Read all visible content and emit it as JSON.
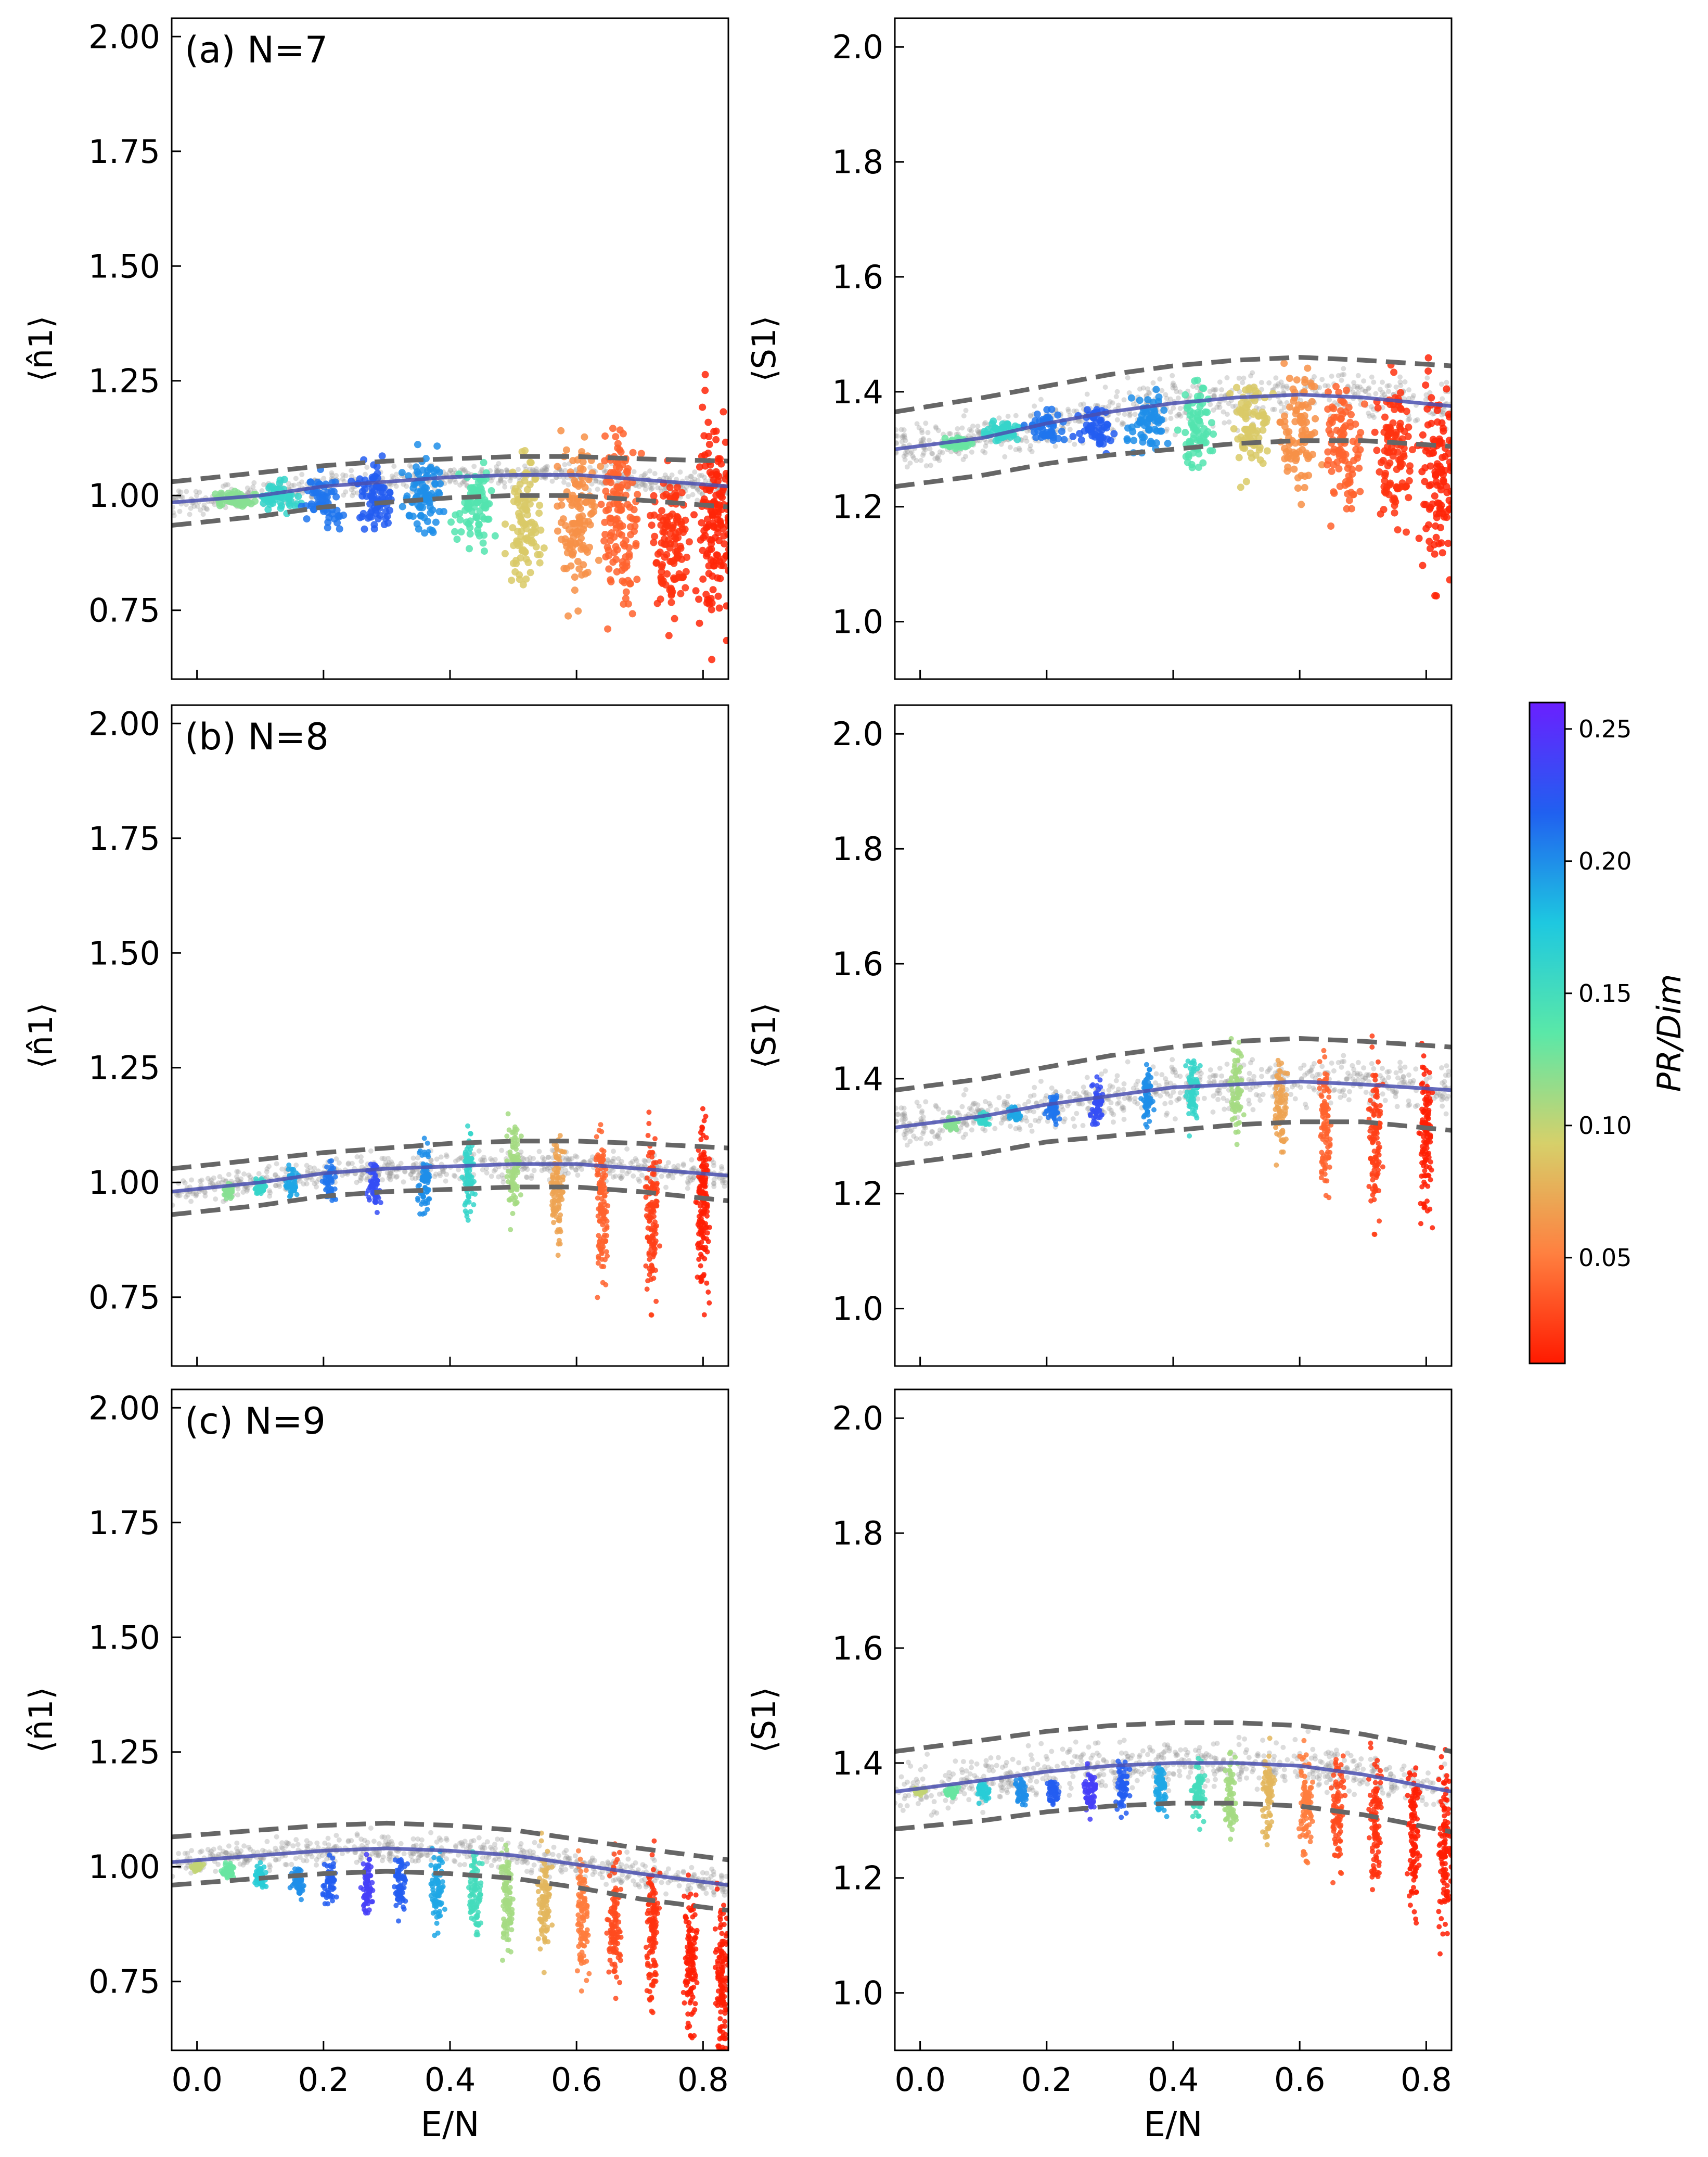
{
  "figure": {
    "colorbar": {
      "label": "PR/Dim",
      "min": 0.01,
      "max": 0.26,
      "ticks": [
        "0.05",
        "0.10",
        "0.15",
        "0.20",
        "0.25"
      ],
      "colors": [
        "#ff1a00",
        "#ff8040",
        "#d6d06a",
        "#5ae8a8",
        "#1ec8e0",
        "#2060f0",
        "#6a20ff"
      ]
    }
  },
  "chart_data": [
    {
      "type": "scatter",
      "panel": "a",
      "label": "(a) N=7",
      "xlabel": "",
      "ylabel": "⟨n̂1⟩",
      "xlim": [
        -0.04,
        0.84
      ],
      "ylim": [
        0.6,
        2.04
      ],
      "x_ticks": [
        "0.0",
        "0.2",
        "0.4",
        "0.6",
        "0.8"
      ],
      "y_ticks": [
        "0.75",
        "1.00",
        "1.25",
        "1.50",
        "1.75",
        "2.00"
      ],
      "mean_curve": {
        "x": [
          -0.04,
          0.1,
          0.2,
          0.3,
          0.4,
          0.5,
          0.6,
          0.7,
          0.84
        ],
        "y": [
          0.985,
          1.0,
          1.02,
          1.03,
          1.04,
          1.045,
          1.045,
          1.035,
          1.02
        ]
      },
      "band_upper": {
        "x": [
          -0.04,
          0.1,
          0.2,
          0.3,
          0.4,
          0.5,
          0.6,
          0.7,
          0.84
        ],
        "y": [
          1.03,
          1.05,
          1.065,
          1.075,
          1.08,
          1.085,
          1.085,
          1.08,
          1.075
        ]
      },
      "band_lower": {
        "x": [
          -0.04,
          0.1,
          0.2,
          0.3,
          0.4,
          0.5,
          0.6,
          0.7,
          0.84
        ],
        "y": [
          0.935,
          0.955,
          0.975,
          0.985,
          0.995,
          1.0,
          1.0,
          0.99,
          0.975
        ]
      },
      "clusters": [
        {
          "x": 0.06,
          "y": 0.99,
          "pr": 0.12,
          "spread_y": 0.03
        },
        {
          "x": 0.13,
          "y": 1.0,
          "pr": 0.16,
          "spread_y": 0.06
        },
        {
          "x": 0.2,
          "y": 0.99,
          "pr": 0.21,
          "spread_y": 0.1
        },
        {
          "x": 0.28,
          "y": 1.0,
          "pr": 0.22,
          "spread_y": 0.14
        },
        {
          "x": 0.36,
          "y": 1.0,
          "pr": 0.2,
          "spread_y": 0.16
        },
        {
          "x": 0.44,
          "y": 0.98,
          "pr": 0.14,
          "spread_y": 0.17
        },
        {
          "x": 0.52,
          "y": 0.95,
          "pr": 0.09,
          "spread_y": 0.24
        },
        {
          "x": 0.6,
          "y": 0.95,
          "pr": 0.06,
          "spread_y": 0.32
        },
        {
          "x": 0.67,
          "y": 0.95,
          "pr": 0.04,
          "spread_y": 0.36
        },
        {
          "x": 0.75,
          "y": 0.9,
          "pr": 0.02,
          "spread_y": 0.3
        },
        {
          "x": 0.82,
          "y": 0.95,
          "pr": 0.015,
          "spread_y": 0.45
        }
      ]
    },
    {
      "type": "scatter",
      "panel": "a-right",
      "label": "",
      "xlabel": "",
      "ylabel": "⟨S1⟩",
      "xlim": [
        -0.04,
        0.84
      ],
      "ylim": [
        0.9,
        2.05
      ],
      "x_ticks": [
        "0.0",
        "0.2",
        "0.4",
        "0.6",
        "0.8"
      ],
      "y_ticks": [
        "1.0",
        "1.2",
        "1.4",
        "1.6",
        "1.8",
        "2.0"
      ],
      "mean_curve": {
        "x": [
          -0.04,
          0.1,
          0.2,
          0.3,
          0.4,
          0.5,
          0.6,
          0.7,
          0.84
        ],
        "y": [
          1.3,
          1.32,
          1.345,
          1.365,
          1.38,
          1.39,
          1.395,
          1.39,
          1.375
        ]
      },
      "band_upper": {
        "x": [
          -0.04,
          0.1,
          0.2,
          0.3,
          0.4,
          0.5,
          0.6,
          0.7,
          0.84
        ],
        "y": [
          1.365,
          1.39,
          1.41,
          1.43,
          1.445,
          1.455,
          1.46,
          1.455,
          1.445
        ]
      },
      "band_lower": {
        "x": [
          -0.04,
          0.1,
          0.2,
          0.3,
          0.4,
          0.5,
          0.6,
          0.7,
          0.84
        ],
        "y": [
          1.235,
          1.255,
          1.275,
          1.29,
          1.3,
          1.31,
          1.315,
          1.315,
          1.305
        ]
      },
      "clusters": [
        {
          "x": 0.06,
          "y": 1.31,
          "pr": 0.13,
          "spread_y": 0.02
        },
        {
          "x": 0.13,
          "y": 1.33,
          "pr": 0.16,
          "spread_y": 0.03
        },
        {
          "x": 0.2,
          "y": 1.34,
          "pr": 0.21,
          "spread_y": 0.05
        },
        {
          "x": 0.28,
          "y": 1.34,
          "pr": 0.22,
          "spread_y": 0.08
        },
        {
          "x": 0.36,
          "y": 1.35,
          "pr": 0.2,
          "spread_y": 0.1
        },
        {
          "x": 0.44,
          "y": 1.34,
          "pr": 0.14,
          "spread_y": 0.13
        },
        {
          "x": 0.52,
          "y": 1.34,
          "pr": 0.09,
          "spread_y": 0.16
        },
        {
          "x": 0.6,
          "y": 1.33,
          "pr": 0.06,
          "spread_y": 0.2
        },
        {
          "x": 0.67,
          "y": 1.3,
          "pr": 0.04,
          "spread_y": 0.2
        },
        {
          "x": 0.75,
          "y": 1.3,
          "pr": 0.02,
          "spread_y": 0.25
        },
        {
          "x": 0.82,
          "y": 1.25,
          "pr": 0.015,
          "spread_y": 0.3
        }
      ]
    },
    {
      "type": "scatter",
      "panel": "b",
      "label": "(b) N=8",
      "xlabel": "",
      "ylabel": "⟨n̂1⟩",
      "xlim": [
        -0.04,
        0.84
      ],
      "ylim": [
        0.6,
        2.04
      ],
      "x_ticks": [
        "0.0",
        "0.2",
        "0.4",
        "0.6",
        "0.8"
      ],
      "y_ticks": [
        "0.75",
        "1.00",
        "1.25",
        "1.50",
        "1.75",
        "2.00"
      ],
      "mean_curve": {
        "x": [
          -0.04,
          0.1,
          0.2,
          0.3,
          0.4,
          0.5,
          0.6,
          0.7,
          0.84
        ],
        "y": [
          0.98,
          1.0,
          1.02,
          1.03,
          1.035,
          1.04,
          1.04,
          1.03,
          1.015
        ]
      },
      "band_upper": {
        "x": [
          -0.04,
          0.1,
          0.2,
          0.3,
          0.4,
          0.5,
          0.6,
          0.7,
          0.84
        ],
        "y": [
          1.03,
          1.05,
          1.065,
          1.075,
          1.085,
          1.09,
          1.09,
          1.085,
          1.075
        ]
      },
      "band_lower": {
        "x": [
          -0.04,
          0.1,
          0.2,
          0.3,
          0.4,
          0.5,
          0.6,
          0.7,
          0.84
        ],
        "y": [
          0.93,
          0.95,
          0.97,
          0.98,
          0.985,
          0.99,
          0.99,
          0.98,
          0.96
        ]
      },
      "clusters": [
        {
          "x": 0.05,
          "y": 0.98,
          "pr": 0.12,
          "spread_y": 0.03
        },
        {
          "x": 0.1,
          "y": 0.99,
          "pr": 0.16,
          "spread_y": 0.04
        },
        {
          "x": 0.15,
          "y": 1.0,
          "pr": 0.19,
          "spread_y": 0.06
        },
        {
          "x": 0.21,
          "y": 1.0,
          "pr": 0.21,
          "spread_y": 0.08
        },
        {
          "x": 0.28,
          "y": 1.0,
          "pr": 0.23,
          "spread_y": 0.11
        },
        {
          "x": 0.36,
          "y": 1.01,
          "pr": 0.2,
          "spread_y": 0.14
        },
        {
          "x": 0.43,
          "y": 1.02,
          "pr": 0.16,
          "spread_y": 0.17
        },
        {
          "x": 0.5,
          "y": 1.03,
          "pr": 0.11,
          "spread_y": 0.2
        },
        {
          "x": 0.57,
          "y": 0.98,
          "pr": 0.07,
          "spread_y": 0.22
        },
        {
          "x": 0.64,
          "y": 0.95,
          "pr": 0.04,
          "spread_y": 0.3
        },
        {
          "x": 0.72,
          "y": 0.93,
          "pr": 0.025,
          "spread_y": 0.32
        },
        {
          "x": 0.8,
          "y": 0.95,
          "pr": 0.012,
          "spread_y": 0.4
        }
      ]
    },
    {
      "type": "scatter",
      "panel": "b-right",
      "label": "",
      "xlabel": "",
      "ylabel": "⟨S1⟩",
      "xlim": [
        -0.04,
        0.84
      ],
      "ylim": [
        0.9,
        2.05
      ],
      "x_ticks": [
        "0.0",
        "0.2",
        "0.4",
        "0.6",
        "0.8"
      ],
      "y_ticks": [
        "1.0",
        "1.2",
        "1.4",
        "1.6",
        "1.8",
        "2.0"
      ],
      "mean_curve": {
        "x": [
          -0.04,
          0.1,
          0.2,
          0.3,
          0.4,
          0.5,
          0.6,
          0.7,
          0.84
        ],
        "y": [
          1.315,
          1.335,
          1.355,
          1.37,
          1.385,
          1.39,
          1.395,
          1.39,
          1.38
        ]
      },
      "band_upper": {
        "x": [
          -0.04,
          0.1,
          0.2,
          0.3,
          0.4,
          0.5,
          0.6,
          0.7,
          0.84
        ],
        "y": [
          1.38,
          1.4,
          1.42,
          1.44,
          1.455,
          1.465,
          1.47,
          1.465,
          1.455
        ]
      },
      "band_lower": {
        "x": [
          -0.04,
          0.1,
          0.2,
          0.3,
          0.4,
          0.5,
          0.6,
          0.7,
          0.84
        ],
        "y": [
          1.25,
          1.27,
          1.29,
          1.3,
          1.31,
          1.32,
          1.325,
          1.325,
          1.31
        ]
      },
      "clusters": [
        {
          "x": 0.05,
          "y": 1.32,
          "pr": 0.12,
          "spread_y": 0.02
        },
        {
          "x": 0.1,
          "y": 1.33,
          "pr": 0.16,
          "spread_y": 0.02
        },
        {
          "x": 0.15,
          "y": 1.34,
          "pr": 0.19,
          "spread_y": 0.03
        },
        {
          "x": 0.21,
          "y": 1.35,
          "pr": 0.21,
          "spread_y": 0.05
        },
        {
          "x": 0.28,
          "y": 1.36,
          "pr": 0.23,
          "spread_y": 0.07
        },
        {
          "x": 0.36,
          "y": 1.37,
          "pr": 0.2,
          "spread_y": 0.09
        },
        {
          "x": 0.43,
          "y": 1.38,
          "pr": 0.16,
          "spread_y": 0.12
        },
        {
          "x": 0.5,
          "y": 1.38,
          "pr": 0.11,
          "spread_y": 0.15
        },
        {
          "x": 0.57,
          "y": 1.35,
          "pr": 0.07,
          "spread_y": 0.15
        },
        {
          "x": 0.64,
          "y": 1.32,
          "pr": 0.04,
          "spread_y": 0.22
        },
        {
          "x": 0.72,
          "y": 1.3,
          "pr": 0.025,
          "spread_y": 0.25
        },
        {
          "x": 0.8,
          "y": 1.3,
          "pr": 0.012,
          "spread_y": 0.3
        }
      ]
    },
    {
      "type": "scatter",
      "panel": "c",
      "label": "(c) N=9",
      "xlabel": "E/N",
      "ylabel": "⟨n̂1⟩",
      "xlim": [
        -0.04,
        0.84
      ],
      "ylim": [
        0.6,
        2.04
      ],
      "x_ticks": [
        "0.0",
        "0.2",
        "0.4",
        "0.6",
        "0.8"
      ],
      "y_ticks": [
        "0.75",
        "1.00",
        "1.25",
        "1.50",
        "1.75",
        "2.00"
      ],
      "mean_curve": {
        "x": [
          -0.04,
          0.1,
          0.2,
          0.3,
          0.4,
          0.5,
          0.6,
          0.7,
          0.84
        ],
        "y": [
          1.01,
          1.025,
          1.035,
          1.04,
          1.035,
          1.025,
          1.005,
          0.985,
          0.96
        ]
      },
      "band_upper": {
        "x": [
          -0.04,
          0.1,
          0.2,
          0.3,
          0.4,
          0.5,
          0.6,
          0.7,
          0.84
        ],
        "y": [
          1.065,
          1.08,
          1.09,
          1.095,
          1.09,
          1.08,
          1.06,
          1.04,
          1.015
        ]
      },
      "band_lower": {
        "x": [
          -0.04,
          0.1,
          0.2,
          0.3,
          0.4,
          0.5,
          0.6,
          0.7,
          0.84
        ],
        "y": [
          0.96,
          0.975,
          0.985,
          0.99,
          0.985,
          0.975,
          0.955,
          0.93,
          0.905
        ]
      },
      "clusters": [
        {
          "x": 0.0,
          "y": 1.0,
          "pr": 0.1,
          "spread_y": 0.02
        },
        {
          "x": 0.05,
          "y": 0.99,
          "pr": 0.13,
          "spread_y": 0.03
        },
        {
          "x": 0.1,
          "y": 0.98,
          "pr": 0.17,
          "spread_y": 0.05
        },
        {
          "x": 0.16,
          "y": 0.97,
          "pr": 0.2,
          "spread_y": 0.07
        },
        {
          "x": 0.21,
          "y": 0.97,
          "pr": 0.22,
          "spread_y": 0.09
        },
        {
          "x": 0.27,
          "y": 0.96,
          "pr": 0.24,
          "spread_y": 0.11
        },
        {
          "x": 0.32,
          "y": 0.96,
          "pr": 0.22,
          "spread_y": 0.13
        },
        {
          "x": 0.38,
          "y": 0.95,
          "pr": 0.19,
          "spread_y": 0.15
        },
        {
          "x": 0.44,
          "y": 0.94,
          "pr": 0.15,
          "spread_y": 0.17
        },
        {
          "x": 0.49,
          "y": 0.93,
          "pr": 0.11,
          "spread_y": 0.2
        },
        {
          "x": 0.55,
          "y": 0.92,
          "pr": 0.08,
          "spread_y": 0.22
        },
        {
          "x": 0.61,
          "y": 0.9,
          "pr": 0.05,
          "spread_y": 0.25
        },
        {
          "x": 0.66,
          "y": 0.88,
          "pr": 0.03,
          "spread_y": 0.28
        },
        {
          "x": 0.72,
          "y": 0.85,
          "pr": 0.02,
          "spread_y": 0.3
        },
        {
          "x": 0.78,
          "y": 0.8,
          "pr": 0.012,
          "spread_y": 0.3
        },
        {
          "x": 0.83,
          "y": 0.75,
          "pr": 0.012,
          "spread_y": 0.35
        }
      ]
    },
    {
      "type": "scatter",
      "panel": "c-right",
      "label": "",
      "xlabel": "E/N",
      "ylabel": "⟨S1⟩",
      "xlim": [
        -0.04,
        0.84
      ],
      "ylim": [
        0.9,
        2.05
      ],
      "x_ticks": [
        "0.0",
        "0.2",
        "0.4",
        "0.6",
        "0.8"
      ],
      "y_ticks": [
        "1.0",
        "1.2",
        "1.4",
        "1.6",
        "1.8",
        "2.0"
      ],
      "mean_curve": {
        "x": [
          -0.04,
          0.1,
          0.2,
          0.3,
          0.4,
          0.5,
          0.6,
          0.7,
          0.84
        ],
        "y": [
          1.35,
          1.37,
          1.385,
          1.395,
          1.4,
          1.4,
          1.395,
          1.38,
          1.35
        ]
      },
      "band_upper": {
        "x": [
          -0.04,
          0.1,
          0.2,
          0.3,
          0.4,
          0.5,
          0.6,
          0.7,
          0.84
        ],
        "y": [
          1.42,
          1.44,
          1.455,
          1.465,
          1.47,
          1.47,
          1.465,
          1.45,
          1.42
        ]
      },
      "band_lower": {
        "x": [
          -0.04,
          0.1,
          0.2,
          0.3,
          0.4,
          0.5,
          0.6,
          0.7,
          0.84
        ],
        "y": [
          1.285,
          1.3,
          1.315,
          1.325,
          1.33,
          1.33,
          1.325,
          1.31,
          1.28
        ]
      },
      "clusters": [
        {
          "x": 0.0,
          "y": 1.35,
          "pr": 0.1,
          "spread_y": 0.01
        },
        {
          "x": 0.05,
          "y": 1.35,
          "pr": 0.13,
          "spread_y": 0.02
        },
        {
          "x": 0.1,
          "y": 1.35,
          "pr": 0.17,
          "spread_y": 0.03
        },
        {
          "x": 0.16,
          "y": 1.35,
          "pr": 0.2,
          "spread_y": 0.04
        },
        {
          "x": 0.21,
          "y": 1.35,
          "pr": 0.22,
          "spread_y": 0.05
        },
        {
          "x": 0.27,
          "y": 1.35,
          "pr": 0.24,
          "spread_y": 0.07
        },
        {
          "x": 0.32,
          "y": 1.36,
          "pr": 0.22,
          "spread_y": 0.08
        },
        {
          "x": 0.38,
          "y": 1.36,
          "pr": 0.19,
          "spread_y": 0.1
        },
        {
          "x": 0.44,
          "y": 1.35,
          "pr": 0.15,
          "spread_y": 0.11
        },
        {
          "x": 0.49,
          "y": 1.34,
          "pr": 0.11,
          "spread_y": 0.13
        },
        {
          "x": 0.55,
          "y": 1.34,
          "pr": 0.08,
          "spread_y": 0.15
        },
        {
          "x": 0.61,
          "y": 1.33,
          "pr": 0.05,
          "spread_y": 0.18
        },
        {
          "x": 0.66,
          "y": 1.32,
          "pr": 0.03,
          "spread_y": 0.2
        },
        {
          "x": 0.72,
          "y": 1.3,
          "pr": 0.02,
          "spread_y": 0.22
        },
        {
          "x": 0.78,
          "y": 1.28,
          "pr": 0.012,
          "spread_y": 0.25
        },
        {
          "x": 0.83,
          "y": 1.25,
          "pr": 0.012,
          "spread_y": 0.28
        }
      ]
    }
  ]
}
